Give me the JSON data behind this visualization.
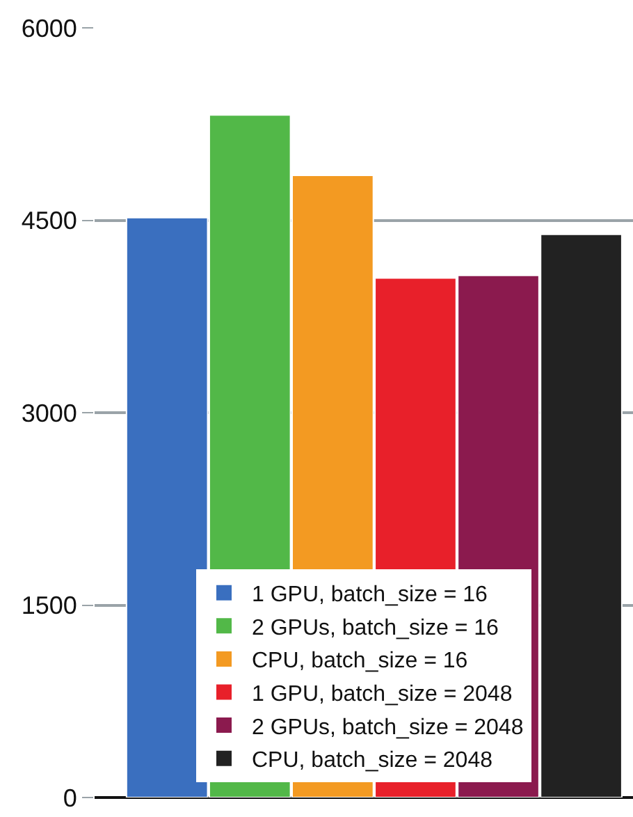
{
  "chart_data": {
    "type": "bar",
    "categories": [
      null
    ],
    "series": [
      {
        "name": "1 GPU, batch_size = 16",
        "color": "#3a6fbf",
        "values": [
          4520
        ]
      },
      {
        "name": "2 GPUs, batch_size = 16",
        "color": "#52b848",
        "values": [
          5320
        ]
      },
      {
        "name": "CPU, batch_size = 16",
        "color": "#f39a22",
        "values": [
          4850
        ]
      },
      {
        "name": "1 GPU, batch_size = 2048",
        "color": "#e8202a",
        "values": [
          4050
        ]
      },
      {
        "name": "2 GPUs, batch_size = 2048",
        "color": "#8b1a4e",
        "values": [
          4070
        ]
      },
      {
        "name": "CPU, batch_size = 2048",
        "color": "#222222",
        "values": [
          4390
        ]
      }
    ],
    "ylim": [
      0,
      6000
    ],
    "yticks": [
      0,
      1500,
      3000,
      4500,
      6000
    ],
    "grid": "y",
    "legend": "bottom"
  }
}
